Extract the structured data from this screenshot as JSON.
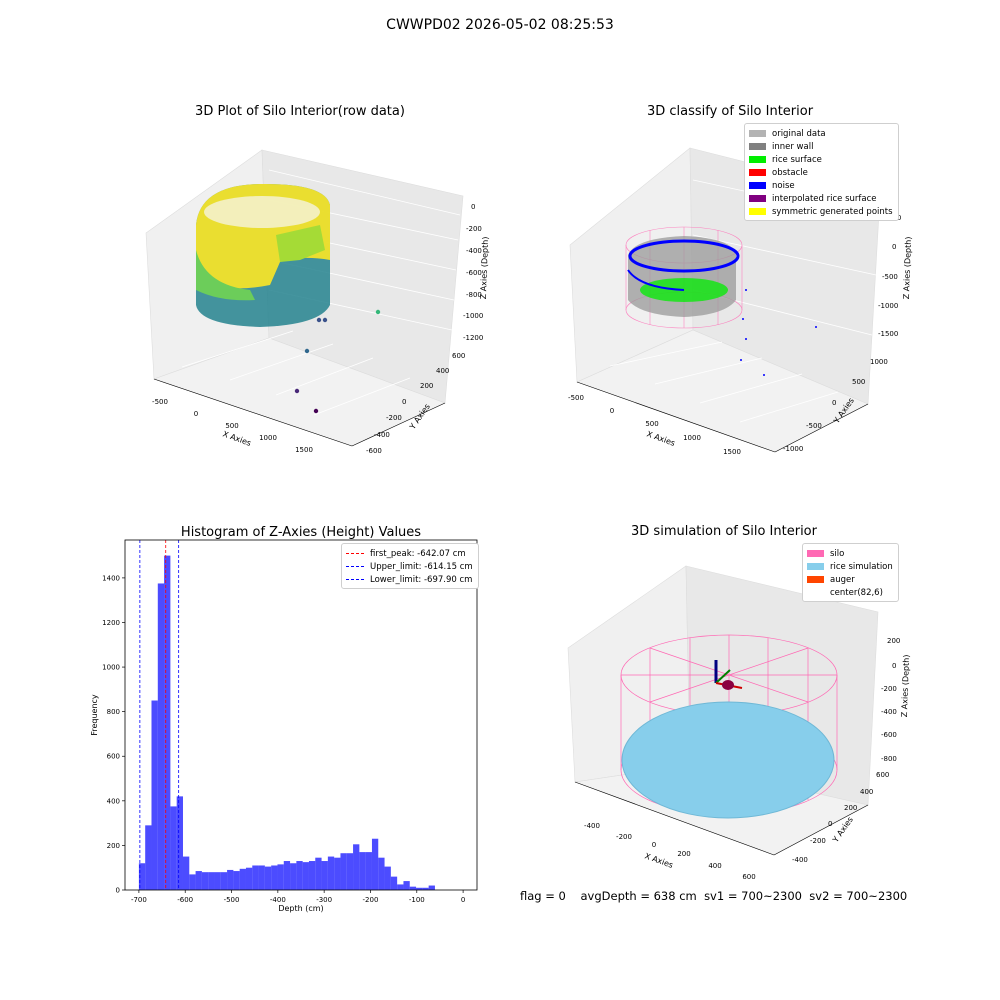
{
  "suptitle": "CWWPD02 2026-05-02 08:25:53",
  "panels": {
    "raw": {
      "title": "3D Plot of Silo Interior(row data)",
      "xlabel": "X Axies",
      "ylabel": "Y Axies",
      "zlabel": "Z Axies (Depth)",
      "xticks": [
        "-500",
        "0",
        "500",
        "1000",
        "1500"
      ],
      "yticks": [
        "-600",
        "-400",
        "-200",
        "0",
        "200",
        "400",
        "600"
      ],
      "zticks": [
        "0",
        "-200",
        "-400",
        "-600",
        "-800",
        "-1000",
        "-1200"
      ]
    },
    "classify": {
      "title": "3D classify of Silo Interior",
      "xlabel": "X Axies",
      "ylabel": "Y Axies",
      "zlabel": "Z Axies (Depth)",
      "xticks": [
        "-500",
        "0",
        "500",
        "1000",
        "1500"
      ],
      "yticks": [
        "-1000",
        "-500",
        "0",
        "500",
        "1000"
      ],
      "zticks": [
        "500",
        "0",
        "-500",
        "-1000",
        "-1500"
      ],
      "legend": [
        {
          "label": "original data",
          "color": "#b3b3b3"
        },
        {
          "label": "inner wall",
          "color": "#808080"
        },
        {
          "label": "rice surface",
          "color": "#00ee00"
        },
        {
          "label": "obstacle",
          "color": "#ff0000"
        },
        {
          "label": "noise",
          "color": "#0000ff"
        },
        {
          "label": "interpolated rice surface",
          "color": "#800080"
        },
        {
          "label": "symmetric generated points",
          "color": "#ffff00"
        }
      ]
    },
    "simulation": {
      "title": "3D simulation of Silo Interior",
      "xlabel": "X Axies",
      "ylabel": "Y Axies",
      "zlabel": "Z Axies (Depth)",
      "xticks": [
        "-400",
        "-200",
        "0",
        "200",
        "400",
        "600"
      ],
      "yticks": [
        "600",
        "400",
        "200",
        "0",
        "-200",
        "-400"
      ],
      "zticks": [
        "200",
        "0",
        "-200",
        "-400",
        "-600",
        "-800"
      ],
      "legend": [
        {
          "label": "silo",
          "color": "#ff69b4"
        },
        {
          "label": "rice simulation",
          "color": "#87ceeb"
        },
        {
          "label": "auger",
          "color": "#ff4500"
        },
        {
          "label": "center(82,6)",
          "color": ""
        }
      ]
    }
  },
  "chart_data": {
    "type": "bar",
    "title": "Histogram of Z-Axies (Height) Values",
    "xlabel": "Depth (cm)",
    "ylabel": "Frequency",
    "xlim": [
      -730,
      30
    ],
    "ylim": [
      0,
      1570
    ],
    "xticks": [
      -700,
      -600,
      -500,
      -400,
      -300,
      -200,
      -100,
      0
    ],
    "yticks": [
      0,
      200,
      400,
      600,
      800,
      1000,
      1200,
      1400
    ],
    "bin_width": 13.6,
    "bin_start": -700,
    "values": [
      120,
      290,
      850,
      1375,
      1500,
      375,
      420,
      150,
      70,
      85,
      80,
      80,
      80,
      80,
      90,
      85,
      95,
      100,
      110,
      110,
      105,
      110,
      115,
      130,
      120,
      130,
      125,
      130,
      145,
      130,
      150,
      145,
      165,
      165,
      205,
      170,
      170,
      230,
      145,
      105,
      60,
      25,
      40,
      15,
      10,
      10,
      20
    ],
    "bar_color": "#0000ff",
    "bar_alpha": 0.7,
    "lines": [
      {
        "label": "first_peak: -642.07 cm",
        "x": -642.07,
        "color": "#ff0000"
      },
      {
        "label": "Upper_limit: -614.15 cm",
        "x": -614.15,
        "color": "#0000ff"
      },
      {
        "label": "Lower_limit: -697.90 cm",
        "x": -697.9,
        "color": "#0000ff"
      }
    ],
    "legend_position": "upper right"
  },
  "footer": {
    "flag": "flag = 0",
    "avg": "avgDepth = 638 cm",
    "sv1": "sv1 = 700~2300",
    "sv2": "sv2 = 700~2300"
  }
}
